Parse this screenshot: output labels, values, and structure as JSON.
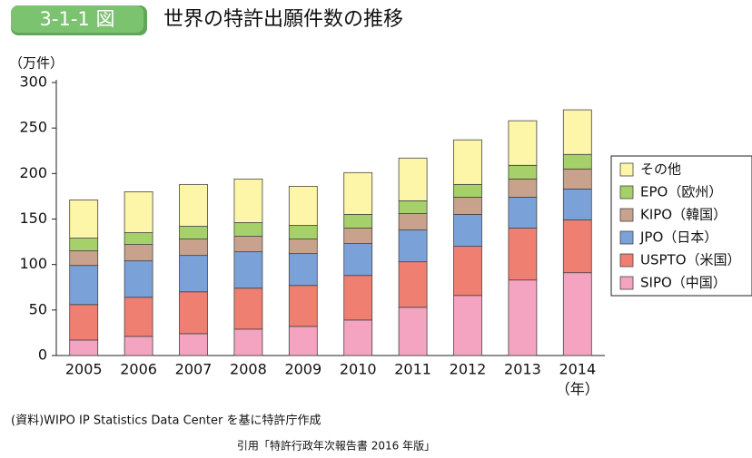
{
  "chart_data": {
    "type": "stacked-bar",
    "figure_label": "3-1-1 図",
    "title": "世界の特許出願件数の推移",
    "y_label": "（万件）",
    "x_label": "（年）",
    "source": "(資料)WIPO IP Statistics Data Center を基に特許庁作成",
    "citation": "引用「特許行政年次報告書 2016 年版」",
    "categories": [
      "2005",
      "2006",
      "2007",
      "2008",
      "2009",
      "2010",
      "2011",
      "2012",
      "2013",
      "2014"
    ],
    "series": [
      {
        "name": "SIPO（中国）",
        "color": "#f4a4c0",
        "values": [
          17,
          21,
          24,
          29,
          32,
          39,
          53,
          66,
          83,
          91
        ]
      },
      {
        "name": "USPTO（米国）",
        "color": "#ef7f70",
        "values": [
          39,
          43,
          46,
          45,
          45,
          49,
          50,
          54,
          57,
          58
        ]
      },
      {
        "name": "JPO（日本）",
        "color": "#7ba2d8",
        "values": [
          43,
          40,
          40,
          40,
          35,
          35,
          35,
          35,
          34,
          34
        ]
      },
      {
        "name": "KIPO（韓国）",
        "color": "#c9a28e",
        "values": [
          16,
          18,
          18,
          17,
          16,
          17,
          18,
          19,
          20,
          22
        ]
      },
      {
        "name": "EPO（欧州）",
        "color": "#a6d06a",
        "values": [
          14,
          13,
          14,
          15,
          15,
          15,
          14,
          14,
          15,
          16
        ]
      },
      {
        "name": "その他",
        "color": "#fdf6a8",
        "values": [
          42,
          45,
          46,
          48,
          43,
          46,
          47,
          49,
          49,
          49
        ]
      }
    ],
    "ylim": [
      0,
      300
    ],
    "yticks": [
      0,
      50,
      100,
      150,
      200,
      250,
      300
    ]
  }
}
